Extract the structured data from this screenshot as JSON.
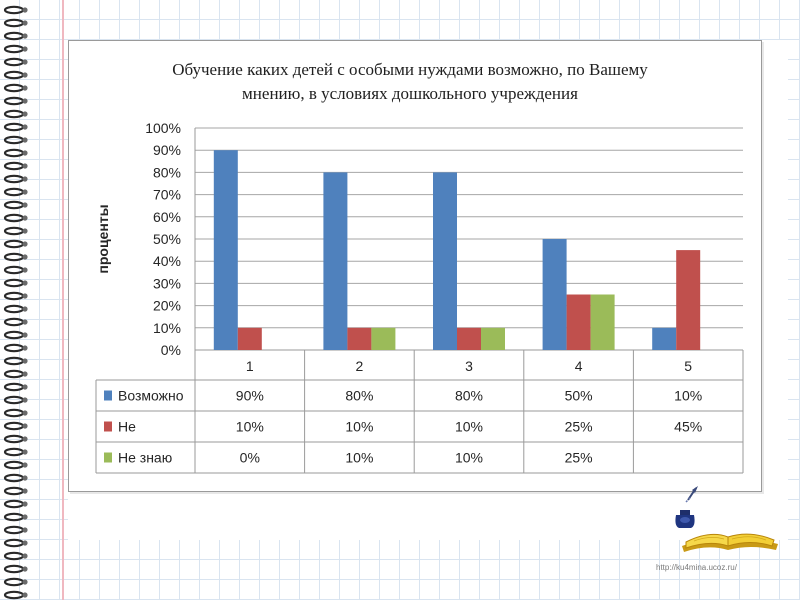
{
  "chart_data": {
    "type": "bar",
    "title_lines": [
      "Обучение каких детей с  особыми нуждами возможно, по Вашему",
      "мнению, в условиях дошкольного учреждения"
    ],
    "xlabel": "",
    "ylabel": "проценты",
    "ylim": [
      0,
      100
    ],
    "yticks": [
      "0%",
      "10%",
      "20%",
      "30%",
      "40%",
      "50%",
      "60%",
      "70%",
      "80%",
      "90%",
      "100%"
    ],
    "categories": [
      "1",
      "2",
      "3",
      "4",
      "5"
    ],
    "grid": true,
    "legend": "data-table",
    "series": [
      {
        "name": "Возможно",
        "color": "#4f81bd",
        "values": [
          90,
          80,
          80,
          50,
          10
        ],
        "labels": [
          "90%",
          "80%",
          "80%",
          "50%",
          "10%"
        ]
      },
      {
        "name": "Не",
        "color": "#c0504d",
        "values": [
          10,
          10,
          10,
          25,
          45
        ],
        "labels": [
          "10%",
          "10%",
          "10%",
          "25%",
          "45%"
        ]
      },
      {
        "name": "Не знаю",
        "color": "#9bbb59",
        "values": [
          0,
          10,
          10,
          25,
          null
        ],
        "labels": [
          "0%",
          "10%",
          "10%",
          "25%",
          ""
        ]
      }
    ]
  },
  "footer": {
    "url": "http://ku4mina.ucoz.ru/"
  },
  "decor": {
    "left_edge": "spiral-binding",
    "bottom_right": "open-book-with-inkwell-icon",
    "background": "graph-paper"
  }
}
